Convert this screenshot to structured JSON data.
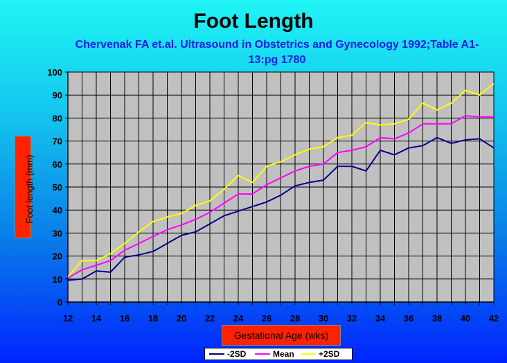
{
  "chart_data": {
    "type": "line",
    "title": "Foot Length",
    "subtitle": "Chervenak FA et.al. Ultrasound in Obstetrics and Gynecology 1992;Table A1-13:pg 1780",
    "xlabel": "Gestational Age (wks)",
    "ylabel": "Foot length (mm)",
    "x": [
      12,
      13,
      14,
      15,
      16,
      17,
      18,
      19,
      20,
      21,
      22,
      23,
      24,
      25,
      26,
      27,
      28,
      29,
      30,
      31,
      32,
      33,
      34,
      35,
      36,
      37,
      38,
      39,
      40,
      41,
      42
    ],
    "xticks": [
      12,
      14,
      16,
      18,
      20,
      22,
      24,
      26,
      28,
      30,
      32,
      34,
      36,
      38,
      40,
      42
    ],
    "ylim": [
      0,
      100
    ],
    "yticks": [
      0,
      10,
      20,
      30,
      40,
      50,
      60,
      70,
      80,
      90,
      100
    ],
    "grid": true,
    "legend_position": "bottom",
    "series": [
      {
        "name": "-2SD",
        "color": "#00008b",
        "values": [
          9.5,
          10,
          13.5,
          13,
          19.5,
          20.5,
          22,
          25.5,
          29,
          30.5,
          34,
          37.5,
          39.5,
          41.5,
          43.5,
          46.5,
          50.5,
          52,
          53,
          59,
          59,
          57,
          66,
          64,
          67,
          68,
          71.5,
          69,
          70.5,
          71,
          67
        ]
      },
      {
        "name": "Mean",
        "color": "#ff00ff",
        "values": [
          10.5,
          14,
          16,
          18,
          22.5,
          25.5,
          28.5,
          31.5,
          33.5,
          36,
          39,
          43,
          47,
          47,
          51,
          54,
          57,
          59,
          60,
          65,
          66,
          67.5,
          71.5,
          71,
          73.5,
          77.5,
          77.5,
          77.5,
          81,
          80.5,
          80.5
        ]
      },
      {
        "name": "+2SD",
        "color": "#ffff00",
        "values": [
          11,
          18,
          18,
          21,
          25.5,
          30.5,
          35,
          37,
          38.5,
          42,
          44,
          49,
          55,
          52,
          59,
          61,
          64,
          66.5,
          67.5,
          71.5,
          72.5,
          78,
          77,
          77.5,
          79.5,
          86.5,
          83.5,
          86.5,
          92,
          90,
          95
        ]
      }
    ]
  }
}
